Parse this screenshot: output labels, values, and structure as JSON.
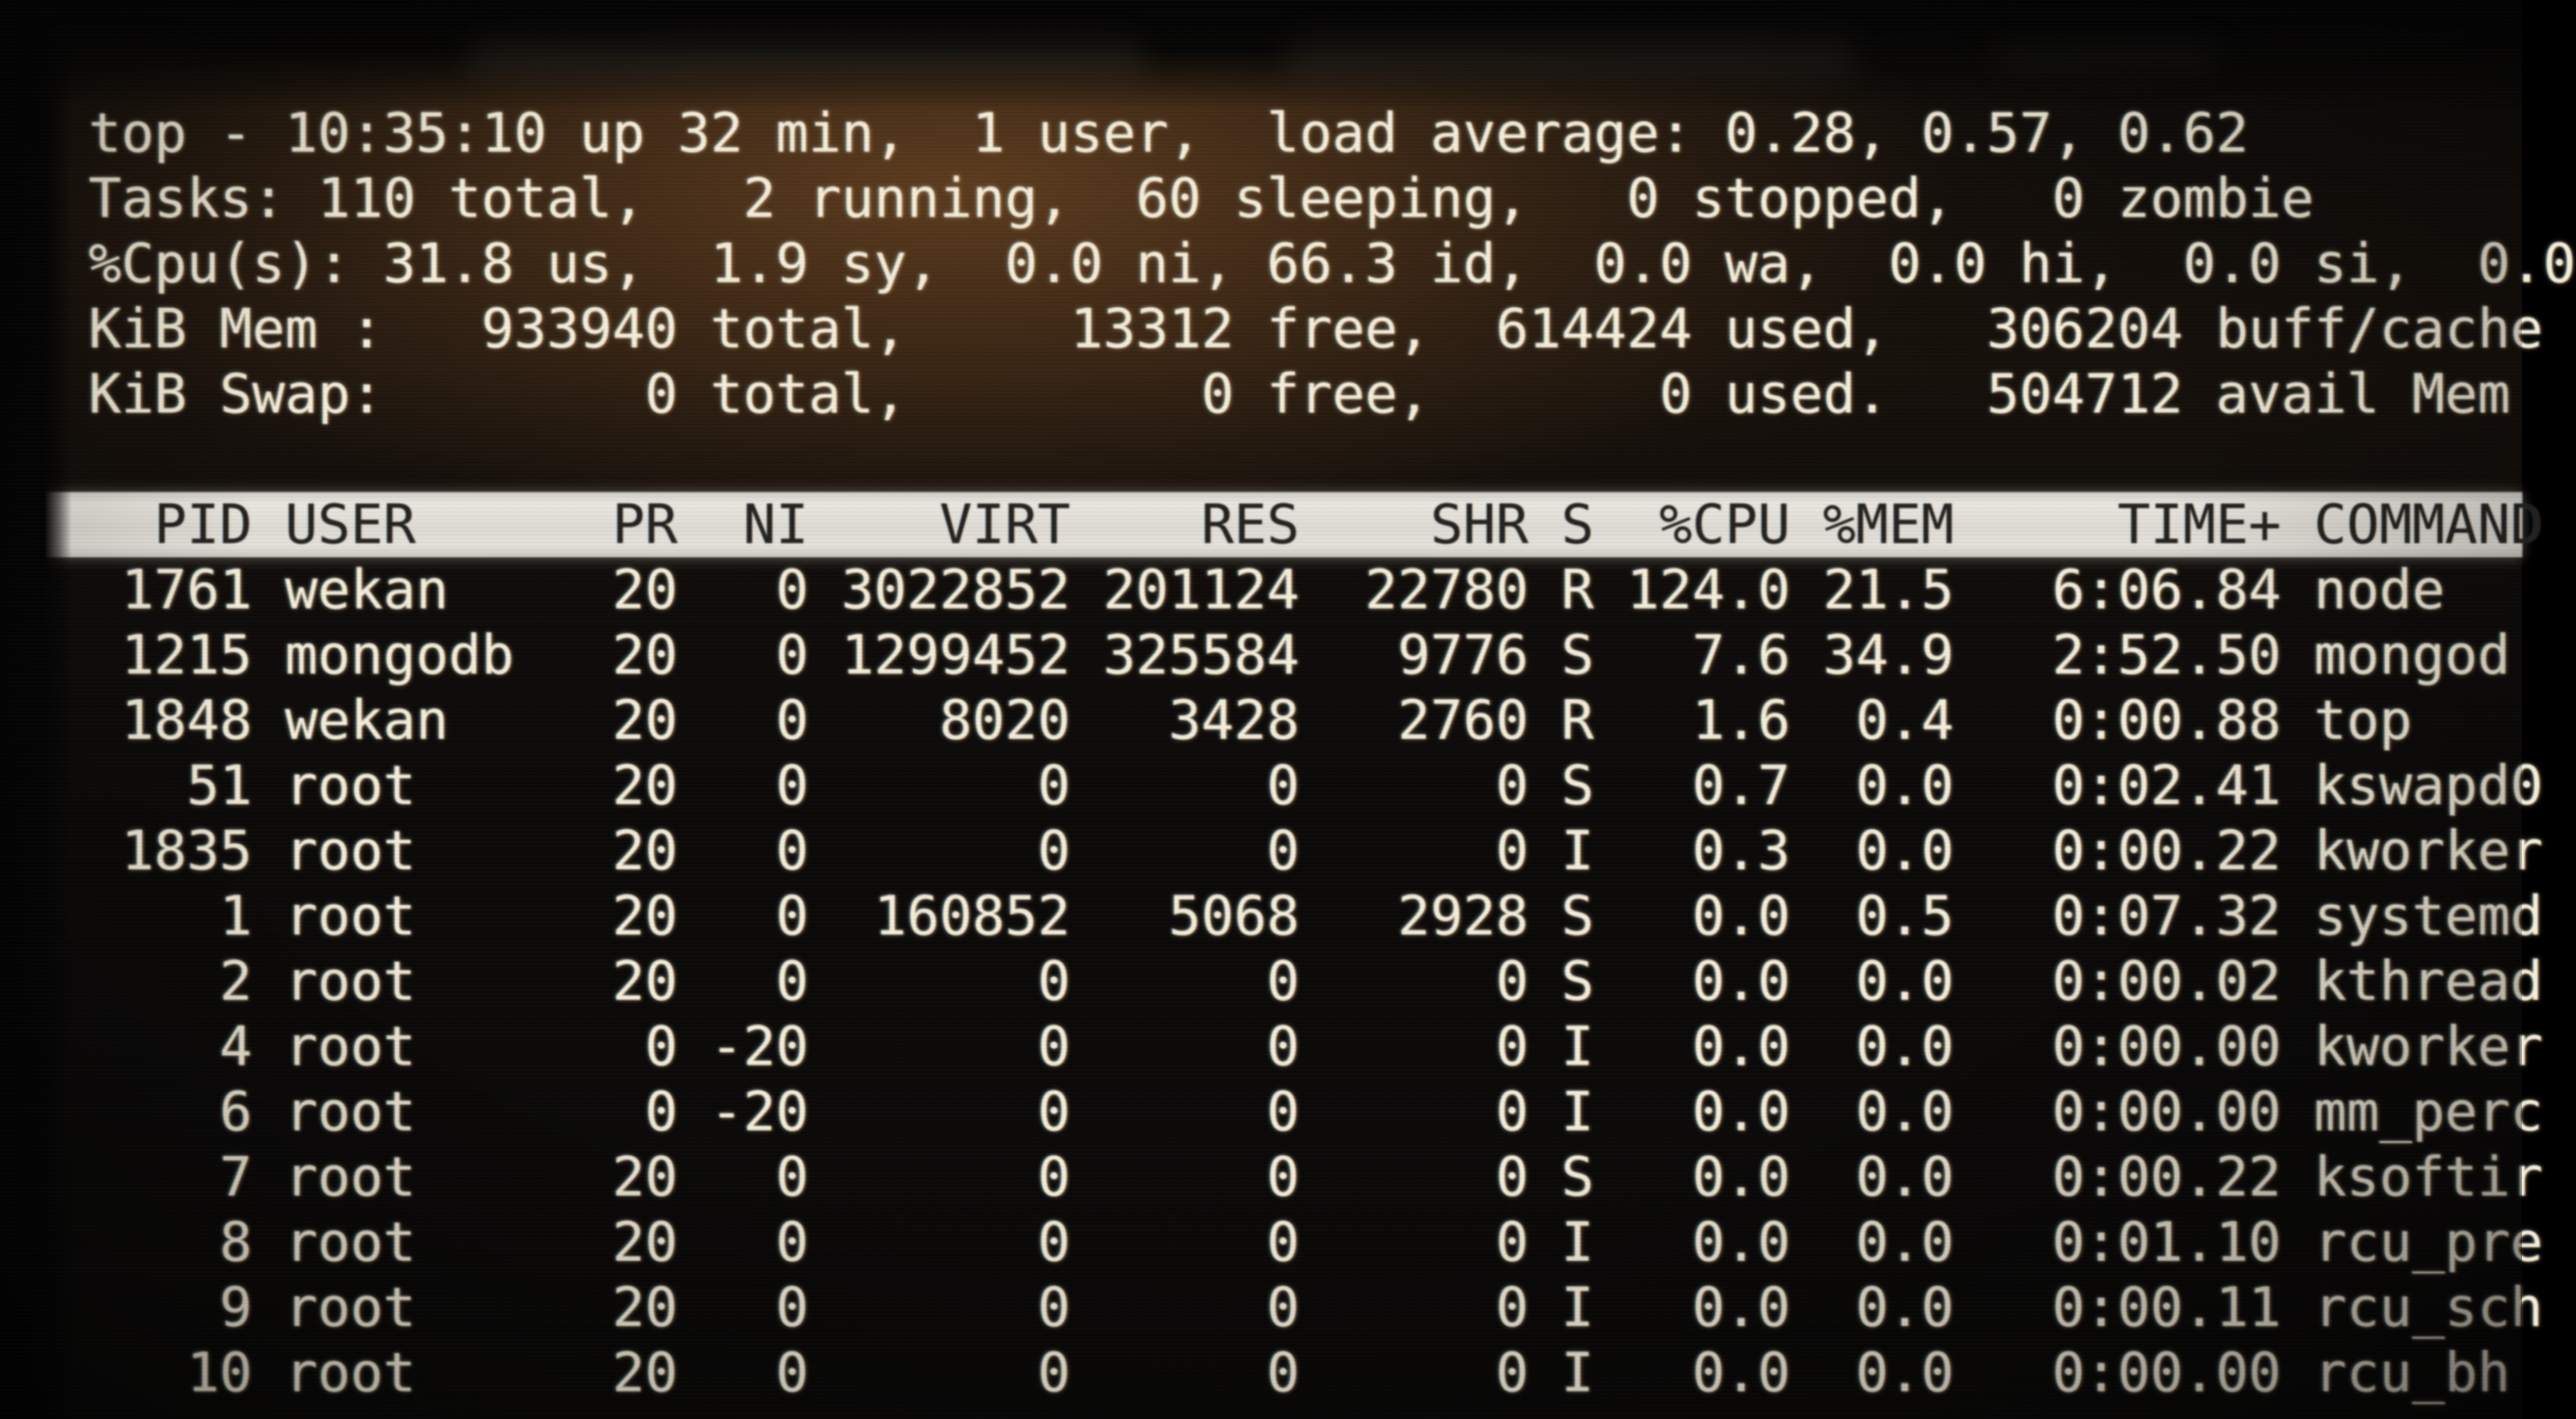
{
  "screen": {
    "summary": {
      "uptime_line": "top - 10:35:10 up 32 min,  1 user,  load average: 0.28, 0.57, 0.62",
      "tasks_line": "Tasks: 110 total,   2 running,  60 sleeping,   0 stopped,   0 zombie",
      "cpu_line": "%Cpu(s): 31.8 us,  1.9 sy,  0.0 ni, 66.3 id,  0.0 wa,  0.0 hi,  0.0 si,  0.0",
      "mem_line": "KiB Mem :   933940 total,     13312 free,  614424 used,   306204 buff/cache",
      "swap_line": "KiB Swap:        0 total,         0 free,       0 used.   504712 avail Mem",
      "message_line": ""
    },
    "table": {
      "header": {
        "pid": "PID",
        "user": "USER",
        "pr": "PR",
        "ni": "NI",
        "virt": "VIRT",
        "res": "RES",
        "shr": "SHR",
        "s": "S",
        "cpu": "%CPU",
        "mem": "%MEM",
        "time": "TIME+",
        "command": "COMMAND"
      },
      "processes": [
        {
          "pid": "1761",
          "user": "wekan",
          "pr": "20",
          "ni": "0",
          "virt": "3022852",
          "res": "201124",
          "shr": "22780",
          "s": "R",
          "cpu": "124.0",
          "mem": "21.5",
          "time": "6:06.84",
          "command": "node"
        },
        {
          "pid": "1215",
          "user": "mongodb",
          "pr": "20",
          "ni": "0",
          "virt": "1299452",
          "res": "325584",
          "shr": "9776",
          "s": "S",
          "cpu": "7.6",
          "mem": "34.9",
          "time": "2:52.50",
          "command": "mongod"
        },
        {
          "pid": "1848",
          "user": "wekan",
          "pr": "20",
          "ni": "0",
          "virt": "8020",
          "res": "3428",
          "shr": "2760",
          "s": "R",
          "cpu": "1.6",
          "mem": "0.4",
          "time": "0:00.88",
          "command": "top"
        },
        {
          "pid": "51",
          "user": "root",
          "pr": "20",
          "ni": "0",
          "virt": "0",
          "res": "0",
          "shr": "0",
          "s": "S",
          "cpu": "0.7",
          "mem": "0.0",
          "time": "0:02.41",
          "command": "kswapd0"
        },
        {
          "pid": "1835",
          "user": "root",
          "pr": "20",
          "ni": "0",
          "virt": "0",
          "res": "0",
          "shr": "0",
          "s": "I",
          "cpu": "0.3",
          "mem": "0.0",
          "time": "0:00.22",
          "command": "kworker"
        },
        {
          "pid": "1",
          "user": "root",
          "pr": "20",
          "ni": "0",
          "virt": "160852",
          "res": "5068",
          "shr": "2928",
          "s": "S",
          "cpu": "0.0",
          "mem": "0.5",
          "time": "0:07.32",
          "command": "systemd"
        },
        {
          "pid": "2",
          "user": "root",
          "pr": "20",
          "ni": "0",
          "virt": "0",
          "res": "0",
          "shr": "0",
          "s": "S",
          "cpu": "0.0",
          "mem": "0.0",
          "time": "0:00.02",
          "command": "kthread"
        },
        {
          "pid": "4",
          "user": "root",
          "pr": "0",
          "ni": "-20",
          "virt": "0",
          "res": "0",
          "shr": "0",
          "s": "I",
          "cpu": "0.0",
          "mem": "0.0",
          "time": "0:00.00",
          "command": "kworker"
        },
        {
          "pid": "6",
          "user": "root",
          "pr": "0",
          "ni": "-20",
          "virt": "0",
          "res": "0",
          "shr": "0",
          "s": "I",
          "cpu": "0.0",
          "mem": "0.0",
          "time": "0:00.00",
          "command": "mm_perc"
        },
        {
          "pid": "7",
          "user": "root",
          "pr": "20",
          "ni": "0",
          "virt": "0",
          "res": "0",
          "shr": "0",
          "s": "S",
          "cpu": "0.0",
          "mem": "0.0",
          "time": "0:00.22",
          "command": "ksoftir"
        },
        {
          "pid": "8",
          "user": "root",
          "pr": "20",
          "ni": "0",
          "virt": "0",
          "res": "0",
          "shr": "0",
          "s": "I",
          "cpu": "0.0",
          "mem": "0.0",
          "time": "0:01.10",
          "command": "rcu_pre"
        },
        {
          "pid": "9",
          "user": "root",
          "pr": "20",
          "ni": "0",
          "virt": "0",
          "res": "0",
          "shr": "0",
          "s": "I",
          "cpu": "0.0",
          "mem": "0.0",
          "time": "0:00.11",
          "command": "rcu_sch"
        },
        {
          "pid": "10",
          "user": "root",
          "pr": "20",
          "ni": "0",
          "virt": "0",
          "res": "0",
          "shr": "0",
          "s": "I",
          "cpu": "0.0",
          "mem": "0.0",
          "time": "0:00.00",
          "command": "rcu_bh"
        }
      ]
    },
    "colors": {
      "text": "#f4edda",
      "header_bg": "#dfddd5",
      "header_text": "#232220",
      "bg_glow": "#3a2717",
      "bg_base": "#0c0a08"
    }
  }
}
